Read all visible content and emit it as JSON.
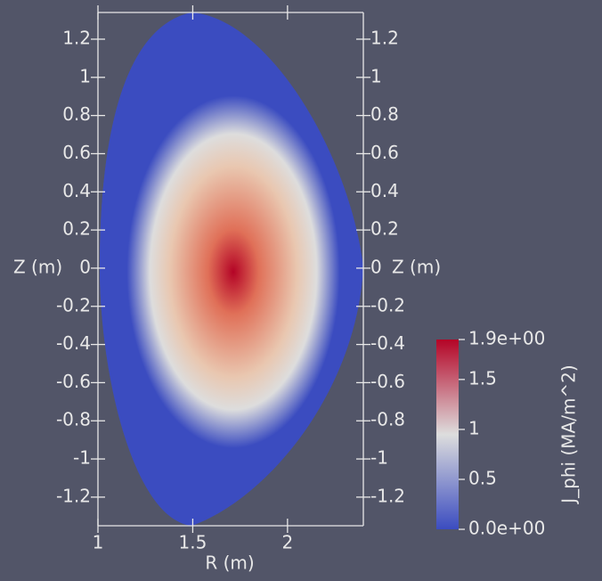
{
  "chart_data": {
    "type": "field",
    "xlabel": "R (m)",
    "ylabel": "Z (m)",
    "xlim": [
      1,
      2.4
    ],
    "ylim": [
      -1.35,
      1.34
    ],
    "xticks": [
      1,
      1.5,
      2
    ],
    "yticks": [
      -1.2,
      -1,
      -0.8,
      -0.6,
      -0.4,
      -0.2,
      0,
      0.2,
      0.4,
      0.6,
      0.8,
      1,
      1.2
    ],
    "colorbar": {
      "title": "J_phi (MA/m^2)",
      "lim": [
        0,
        1.9
      ],
      "ticks": [
        {
          "value": 0,
          "label": "0.0e+00"
        },
        0.5,
        1,
        1.5,
        {
          "value": 1.9,
          "label": "1.9e+00"
        }
      ],
      "colormap": [
        "#3b4cc0",
        "#dddddd",
        "#b40426"
      ]
    }
  }
}
